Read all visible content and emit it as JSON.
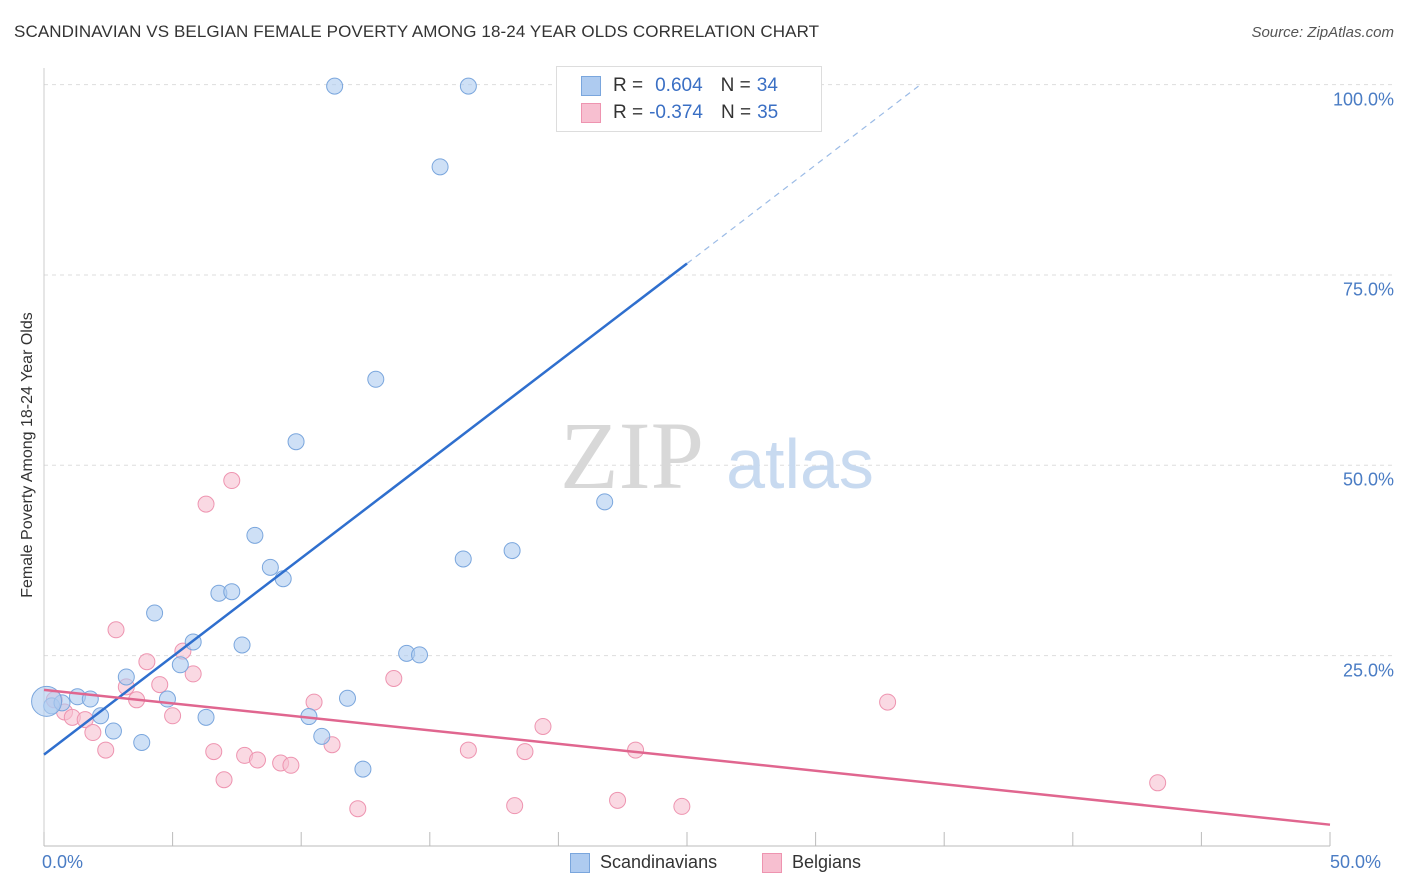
{
  "header": {
    "title": "SCANDINAVIAN VS BELGIAN FEMALE POVERTY AMONG 18-24 YEAR OLDS CORRELATION CHART",
    "source": "Source: ZipAtlas.com"
  },
  "watermark": {
    "part1": "ZIP",
    "part2": "atlas"
  },
  "legend_top": {
    "rows": [
      {
        "r_label": "R =",
        "r_value": "0.604",
        "n_label": "N =",
        "n_value": "34"
      },
      {
        "r_label": "R =",
        "r_value": "-0.374",
        "n_label": "N =",
        "n_value": "35"
      }
    ]
  },
  "legend_bottom": {
    "items": [
      "Scandinavians",
      "Belgians"
    ]
  },
  "colors": {
    "scandinavian_fill": "#aecbf0",
    "scandinavian_stroke": "#7aa6dd",
    "scandinavian_line": "#2f6fce",
    "belgian_fill": "#f7bfd0",
    "belgian_stroke": "#ee94b0",
    "belgian_line": "#e0668f",
    "tick_text": "#4a7cc4",
    "grid": "#dddddd"
  },
  "chart_data": {
    "type": "scatter",
    "title": "SCANDINAVIAN VS BELGIAN FEMALE POVERTY AMONG 18-24 YEAR OLDS CORRELATION CHART",
    "xlabel": "",
    "ylabel": "Female Poverty Among 18-24 Year Olds",
    "xlim": [
      0,
      50
    ],
    "ylim": [
      0,
      100
    ],
    "x_tick_labels": [
      "0.0%",
      "50.0%"
    ],
    "y_tick_labels": [
      "25.0%",
      "50.0%",
      "75.0%",
      "100.0%"
    ],
    "y_ticks": [
      25,
      50,
      75,
      100
    ],
    "grid": true,
    "series": [
      {
        "name": "Scandinavians",
        "r": 0.604,
        "n": 34,
        "points": [
          [
            0.3,
            18.4
          ],
          [
            0.7,
            18.8
          ],
          [
            1.3,
            19.6
          ],
          [
            1.8,
            19.3
          ],
          [
            2.2,
            17.1
          ],
          [
            2.7,
            15.1
          ],
          [
            3.2,
            22.2
          ],
          [
            3.8,
            13.6
          ],
          [
            4.3,
            30.6
          ],
          [
            4.8,
            19.3
          ],
          [
            5.3,
            23.8
          ],
          [
            5.8,
            26.8
          ],
          [
            6.3,
            16.9
          ],
          [
            6.8,
            33.2
          ],
          [
            7.3,
            33.4
          ],
          [
            7.7,
            26.4
          ],
          [
            8.2,
            40.8
          ],
          [
            8.8,
            36.6
          ],
          [
            9.3,
            35.1
          ],
          [
            9.8,
            53.1
          ],
          [
            10.3,
            17.0
          ],
          [
            10.8,
            14.4
          ],
          [
            11.3,
            99.8
          ],
          [
            11.8,
            19.4
          ],
          [
            12.4,
            10.1
          ],
          [
            12.9,
            61.3
          ],
          [
            14.1,
            25.3
          ],
          [
            14.6,
            25.1
          ],
          [
            15.4,
            89.2
          ],
          [
            16.5,
            99.8
          ],
          [
            16.3,
            37.7
          ],
          [
            18.2,
            38.8
          ],
          [
            21.8,
            45.2
          ],
          [
            0.1,
            19.0
          ]
        ],
        "trend": {
          "x": [
            0,
            25
          ],
          "y": [
            12.0,
            76.5
          ],
          "dashed_to": [
            34,
            99.8
          ]
        }
      },
      {
        "name": "Belgians",
        "r": -0.374,
        "n": 35,
        "points": [
          [
            0.4,
            19.2
          ],
          [
            0.8,
            17.6
          ],
          [
            1.1,
            16.9
          ],
          [
            1.6,
            16.6
          ],
          [
            1.9,
            14.9
          ],
          [
            2.4,
            12.6
          ],
          [
            2.8,
            28.4
          ],
          [
            3.2,
            20.9
          ],
          [
            3.6,
            19.2
          ],
          [
            4.0,
            24.2
          ],
          [
            4.5,
            21.2
          ],
          [
            5.0,
            17.1
          ],
          [
            5.4,
            25.6
          ],
          [
            5.8,
            22.6
          ],
          [
            6.3,
            44.9
          ],
          [
            6.6,
            12.4
          ],
          [
            7.0,
            8.7
          ],
          [
            7.3,
            48.0
          ],
          [
            7.8,
            11.9
          ],
          [
            8.3,
            11.3
          ],
          [
            9.2,
            10.9
          ],
          [
            9.6,
            10.6
          ],
          [
            10.5,
            18.9
          ],
          [
            11.2,
            13.3
          ],
          [
            12.2,
            4.9
          ],
          [
            13.6,
            22.0
          ],
          [
            16.5,
            12.6
          ],
          [
            18.3,
            5.3
          ],
          [
            18.7,
            12.4
          ],
          [
            19.4,
            15.7
          ],
          [
            22.3,
            6.0
          ],
          [
            23.0,
            12.6
          ],
          [
            24.8,
            5.2
          ],
          [
            32.8,
            18.9
          ],
          [
            43.3,
            8.3
          ]
        ],
        "trend": {
          "x": [
            0,
            50
          ],
          "y": [
            20.5,
            2.8
          ]
        }
      }
    ]
  }
}
